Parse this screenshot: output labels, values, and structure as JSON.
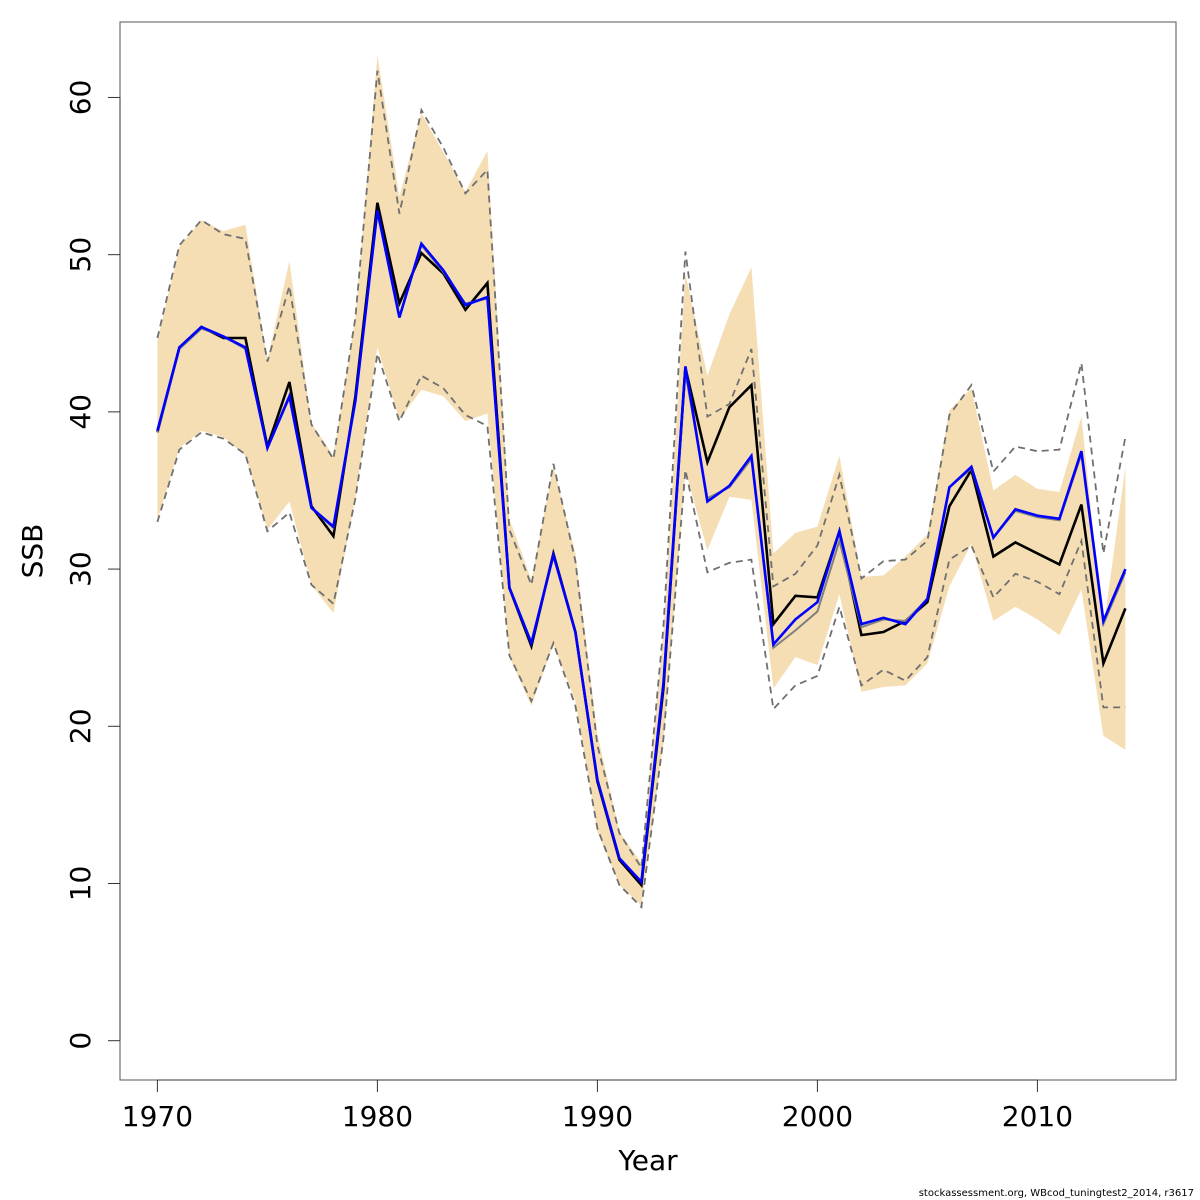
{
  "chart_data": {
    "type": "line",
    "title": "",
    "xlabel": "Year",
    "ylabel": "SSB",
    "xlim": [
      1968.3,
      2016.3
    ],
    "ylim": [
      -2.5,
      64.8
    ],
    "x_ticks": [
      1970,
      1980,
      1990,
      2000,
      2010
    ],
    "y_ticks": [
      0,
      10,
      20,
      30,
      40,
      50,
      60
    ],
    "grid": false,
    "legend": "none",
    "footnote": "stockassessment.org, WBcod_tuningtest2_2014, r3617",
    "colors": {
      "band": "#F5DEB3",
      "estimate": "#000000",
      "alternate": "#0000FF",
      "alternate_shadow": "#808080",
      "ci_dashed": "#707070",
      "axis": "#555555"
    },
    "x": [
      1970,
      1971,
      1972,
      1973,
      1974,
      1975,
      1976,
      1977,
      1978,
      1979,
      1980,
      1981,
      1982,
      1983,
      1984,
      1985,
      1986,
      1987,
      1988,
      1989,
      1990,
      1991,
      1992,
      1993,
      1994,
      1995,
      1996,
      1997,
      1998,
      1999,
      2000,
      2001,
      2002,
      2003,
      2004,
      2005,
      2006,
      2007,
      2008,
      2009,
      2010,
      2011,
      2012,
      2013,
      2014
    ],
    "band": {
      "name": "confidence band (alternate run)",
      "upper": [
        44.5,
        50.5,
        52.2,
        51.5,
        51.9,
        43.3,
        49.6,
        39.3,
        37.2,
        46.0,
        62.7,
        53.7,
        59.0,
        56.5,
        54.0,
        56.6,
        33.2,
        29.3,
        36.5,
        31.0,
        19.5,
        13.3,
        11.3,
        26.0,
        48.8,
        42.3,
        46.2,
        49.2,
        31.0,
        32.3,
        32.7,
        37.2,
        29.5,
        29.6,
        30.8,
        32.2,
        40.1,
        41.5,
        35.0,
        36.0,
        35.1,
        34.9,
        39.7,
        26.2,
        36.5
      ],
      "lower": [
        33.1,
        37.7,
        38.8,
        38.4,
        37.2,
        32.5,
        34.3,
        29.0,
        27.2,
        34.5,
        44.1,
        39.5,
        41.4,
        41.0,
        39.4,
        39.9,
        24.4,
        21.3,
        25.2,
        21.6,
        13.3,
        9.9,
        8.6,
        18.9,
        36.3,
        31.2,
        34.6,
        34.4,
        22.4,
        24.4,
        23.9,
        28.4,
        22.2,
        22.5,
        22.6,
        24.0,
        28.9,
        31.6,
        26.7,
        27.6,
        26.8,
        25.8,
        28.7,
        19.4,
        18.5
      ]
    },
    "series": [
      {
        "name": "estimate",
        "style": "solid-black",
        "values": [
          38.7,
          44.1,
          45.4,
          44.7,
          44.7,
          37.8,
          41.9,
          34.0,
          32.1,
          41.0,
          53.3,
          46.9,
          50.1,
          48.8,
          46.5,
          48.2,
          28.8,
          25.1,
          31.0,
          26.0,
          16.5,
          11.5,
          9.9,
          22.4,
          42.8,
          36.8,
          40.3,
          41.7,
          26.5,
          28.3,
          28.2,
          32.4,
          25.8,
          26.0,
          26.7,
          27.9,
          34.0,
          36.3,
          30.8,
          31.7,
          31.0,
          30.3,
          34.1,
          24.0,
          27.5
        ]
      },
      {
        "name": "estimate upper CI",
        "style": "dashed-gray",
        "values": [
          44.7,
          50.6,
          52.2,
          51.3,
          51.0,
          43.2,
          48.0,
          39.2,
          37.0,
          46.0,
          61.7,
          52.6,
          59.2,
          56.8,
          53.9,
          55.4,
          32.5,
          29.0,
          36.7,
          30.5,
          18.8,
          13.2,
          11.0,
          26.3,
          50.2,
          39.7,
          40.5,
          44.0,
          28.9,
          29.7,
          31.5,
          36.0,
          29.4,
          30.5,
          30.6,
          31.8,
          39.8,
          41.7,
          36.2,
          37.8,
          37.5,
          37.6,
          43.1,
          31.0,
          38.4
        ]
      },
      {
        "name": "estimate lower CI",
        "style": "dashed-gray",
        "values": [
          33.0,
          37.6,
          38.7,
          38.3,
          37.3,
          32.4,
          33.6,
          29.0,
          27.8,
          34.5,
          43.7,
          39.4,
          42.3,
          41.5,
          39.8,
          39.1,
          24.5,
          21.6,
          25.3,
          21.3,
          13.5,
          9.9,
          8.5,
          19.2,
          36.3,
          29.8,
          30.4,
          30.6,
          21.1,
          22.6,
          23.2,
          27.6,
          22.6,
          23.6,
          22.9,
          24.4,
          30.6,
          31.5,
          28.2,
          29.7,
          29.2,
          28.4,
          31.8,
          21.2,
          21.2
        ]
      },
      {
        "name": "alternate estimate (gray)",
        "style": "solid-gray",
        "values": [
          38.7,
          44.0,
          45.3,
          44.8,
          44.0,
          37.7,
          40.9,
          33.9,
          32.6,
          40.7,
          52.8,
          46.0,
          50.6,
          48.9,
          46.9,
          47.2,
          28.9,
          25.3,
          30.8,
          26.0,
          16.6,
          11.6,
          10.1,
          22.7,
          42.5,
          34.5,
          35.2,
          37.0,
          25.0,
          26.1,
          27.3,
          31.8,
          26.3,
          26.8,
          26.7,
          28.1,
          35.2,
          36.4,
          32.0,
          33.7,
          33.3,
          33.1,
          37.3,
          26.5,
          29.8
        ]
      },
      {
        "name": "alternate estimate",
        "style": "solid-blue",
        "values": [
          38.8,
          44.1,
          45.4,
          44.8,
          44.1,
          37.7,
          41.0,
          33.9,
          32.7,
          40.7,
          52.8,
          46.0,
          50.7,
          49.0,
          46.8,
          47.3,
          28.8,
          25.3,
          30.9,
          26.0,
          16.6,
          11.6,
          10.1,
          22.7,
          42.9,
          34.3,
          35.3,
          37.2,
          25.2,
          26.8,
          27.9,
          32.4,
          26.5,
          26.9,
          26.5,
          28.1,
          35.2,
          36.5,
          32.0,
          33.8,
          33.4,
          33.2,
          37.5,
          26.7,
          30.0
        ]
      }
    ]
  }
}
